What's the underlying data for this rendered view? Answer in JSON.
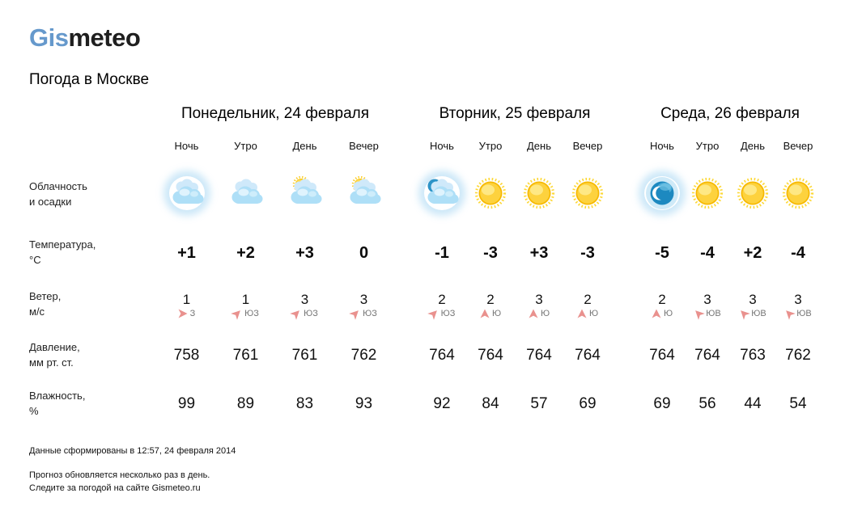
{
  "logo": {
    "part1": "Gis",
    "part2": "meteo"
  },
  "page_title": "Погода в Москве",
  "time_labels": [
    "Ночь",
    "Утро",
    "День",
    "Вечер"
  ],
  "row_labels": {
    "clouds": [
      "Облачность",
      "и осадки"
    ],
    "temperature": [
      "Температура,",
      "°C"
    ],
    "wind": [
      "Ветер,",
      "м/с"
    ],
    "pressure": [
      "Давление,",
      "мм рт. ст."
    ],
    "humidity": [
      "Влажность,",
      "%"
    ]
  },
  "colors": {
    "logo_blue": "#6699cc",
    "wind_arrow": "#e9918e",
    "sun_yellow": "#fbc402",
    "cloud_blue": "#aedff7",
    "moon_blue": "#1d89c0"
  },
  "days": [
    {
      "title": "Понедельник, 24 февраля",
      "icons": [
        "cloudy",
        "cloudy",
        "sun-cloud",
        "sun-cloud"
      ],
      "temps": [
        "+1",
        "+2",
        "+3",
        "0"
      ],
      "wind": [
        {
          "speed": "1",
          "dir": "З",
          "arrow": "e"
        },
        {
          "speed": "1",
          "dir": "ЮЗ",
          "arrow": "ne"
        },
        {
          "speed": "3",
          "dir": "ЮЗ",
          "arrow": "ne"
        },
        {
          "speed": "3",
          "dir": "ЮЗ",
          "arrow": "ne"
        }
      ],
      "pressure": [
        "758",
        "761",
        "761",
        "762"
      ],
      "humidity": [
        "99",
        "89",
        "83",
        "93"
      ]
    },
    {
      "title": "Вторник, 25 февраля",
      "icons": [
        "cloud-moon",
        "sunny",
        "sunny",
        "sunny"
      ],
      "temps": [
        "-1",
        "-3",
        "+3",
        "-3"
      ],
      "wind": [
        {
          "speed": "2",
          "dir": "ЮЗ",
          "arrow": "ne"
        },
        {
          "speed": "2",
          "dir": "Ю",
          "arrow": "n"
        },
        {
          "speed": "3",
          "dir": "Ю",
          "arrow": "n"
        },
        {
          "speed": "2",
          "dir": "Ю",
          "arrow": "n"
        }
      ],
      "pressure": [
        "764",
        "764",
        "764",
        "764"
      ],
      "humidity": [
        "92",
        "84",
        "57",
        "69"
      ]
    },
    {
      "title": "Среда, 26 февраля",
      "icons": [
        "moon",
        "sunny",
        "sunny",
        "sunny"
      ],
      "temps": [
        "-5",
        "-4",
        "+2",
        "-4"
      ],
      "wind": [
        {
          "speed": "2",
          "dir": "Ю",
          "arrow": "n"
        },
        {
          "speed": "3",
          "dir": "ЮВ",
          "arrow": "nw"
        },
        {
          "speed": "3",
          "dir": "ЮВ",
          "arrow": "nw"
        },
        {
          "speed": "3",
          "dir": "ЮВ",
          "arrow": "nw"
        }
      ],
      "pressure": [
        "764",
        "764",
        "763",
        "762"
      ],
      "humidity": [
        "69",
        "56",
        "44",
        "54"
      ]
    }
  ],
  "footer": {
    "generated": "Данные сформированы в 12:57, 24 февраля 2014",
    "note_line1": "Прогноз обновляется несколько раз в день.",
    "note_line2": "Следите за погодой на сайте Gismeteo.ru"
  }
}
